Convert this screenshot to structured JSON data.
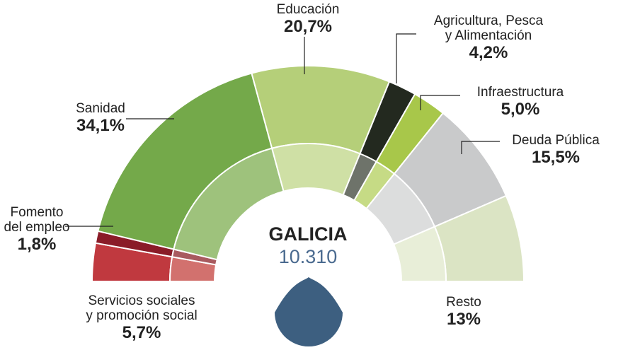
{
  "chart_data": {
    "type": "pie",
    "layout": "semicircle",
    "region": "GALICIA",
    "total": "10.310",
    "slices": [
      {
        "name": "Servicios sociales y promoción social",
        "name_lines": [
          "Servicios sociales",
          "y promoción social"
        ],
        "value": 5.7,
        "label": "5,7%",
        "color": "#c0393f",
        "inner_color": "#d2716e"
      },
      {
        "name": "Fomento del empleo",
        "name_lines": [
          "Fomento",
          "del empleo"
        ],
        "value": 1.8,
        "label": "1,8%",
        "color": "#8a1c28",
        "inner_color": "#a85a5f"
      },
      {
        "name": "Sanidad",
        "name_lines": [
          "Sanidad"
        ],
        "value": 34.1,
        "label": "34,1%",
        "color": "#74a94a",
        "inner_color": "#9ec27c"
      },
      {
        "name": "Educación",
        "name_lines": [
          "Educación"
        ],
        "value": 20.7,
        "label": "20,7%",
        "color": "#b5cf79",
        "inner_color": "#cfe0a5"
      },
      {
        "name": "Agricultura, Pesca y Alimentación",
        "name_lines": [
          "Agricultura, Pesca",
          "y Alimentación"
        ],
        "value": 4.2,
        "label": "4,2%",
        "color": "#23291f",
        "inner_color": "#6e736a"
      },
      {
        "name": "Infraestructura",
        "name_lines": [
          "Infraestructura"
        ],
        "value": 5.0,
        "label": "5,0%",
        "color": "#a8c74a",
        "inner_color": "#c6db85"
      },
      {
        "name": "Deuda Pública",
        "name_lines": [
          "Deuda Pública"
        ],
        "value": 15.5,
        "label": "15,5%",
        "color": "#c9cacb",
        "inner_color": "#dcdddd"
      },
      {
        "name": "Resto",
        "name_lines": [
          "Resto"
        ],
        "value": 13,
        "label": "13%",
        "color": "#dbe4c4",
        "inner_color": "#e8eed8"
      }
    ],
    "colors": {
      "total_text": "#4a6a8f",
      "drop_marker": "#3d5f80"
    }
  }
}
